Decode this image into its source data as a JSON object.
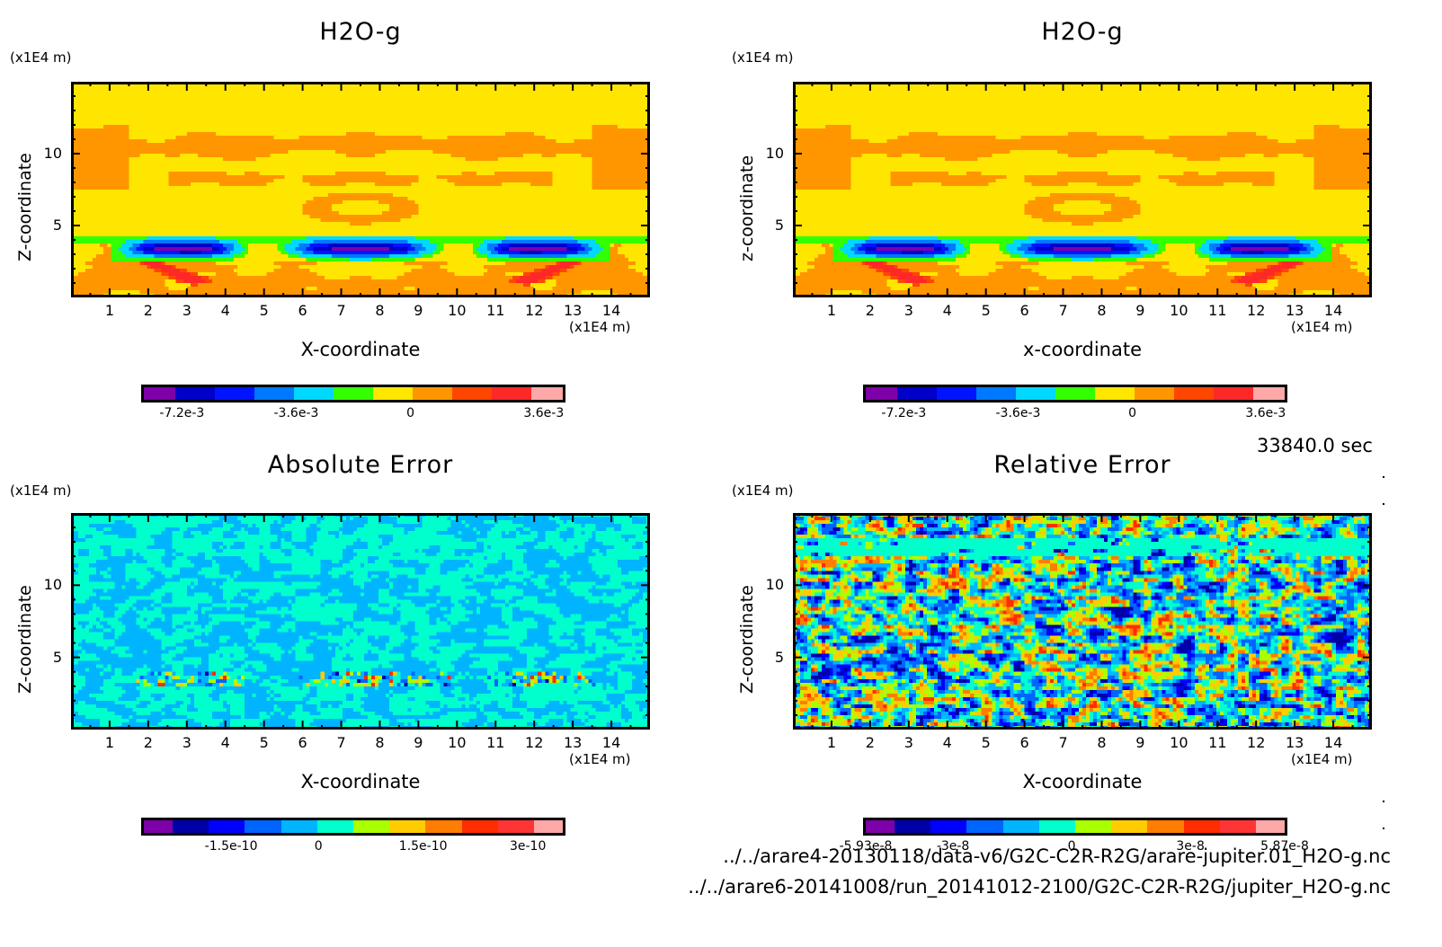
{
  "time_label": "33840.0 sec",
  "file_paths": [
    "../../arare4-20130118/data-v6/G2C-C2R-R2G/arare-jupiter.01_H2O-g.nc",
    "../../arare6-20141008/run_20141012-2100/G2C-C2R-R2G/jupiter_H2O-g.nc"
  ],
  "chart_data": [
    {
      "type": "heatmap",
      "id": "top-left",
      "title": "H2O-g",
      "xlabel": "X-coordinate",
      "ylabel": "Z-coordinate",
      "x_unit": "(x1E4 m)",
      "y_unit": "(x1E4 m)",
      "xlim": [
        0,
        15
      ],
      "ylim": [
        0,
        15
      ],
      "x_ticks": [
        "1",
        "2",
        "3",
        "4",
        "5",
        "6",
        "7",
        "8",
        "9",
        "10",
        "11",
        "12",
        "13",
        "14"
      ],
      "y_ticks": [
        "5",
        "10"
      ],
      "field": "h2o",
      "colorbar": {
        "levels": [
          "-8.1e-3",
          "-7.2e-3",
          "-5.4e-3",
          "-3.6e-3",
          "-2.7e-3",
          "-0.9e-3",
          "0",
          "0.9e-3",
          "2.7e-3",
          "3.6e-3",
          "4.5e-3"
        ],
        "colors": [
          "#7d00a8",
          "#0000c8",
          "#0014ff",
          "#0078ff",
          "#00d8ff",
          "#32ff00",
          "#ffe600",
          "#ff9600",
          "#ff4600",
          "#ff2828",
          "#ffa8a8"
        ],
        "tick_labels": [
          "-7.2e-3",
          "-3.6e-3",
          "0",
          "3.6e-3"
        ],
        "tick_positions": [
          1,
          4,
          7,
          10.5
        ]
      }
    },
    {
      "type": "heatmap",
      "id": "top-right",
      "title": "H2O-g",
      "xlabel": "x-coordinate",
      "ylabel": "z-coordinate",
      "x_unit": "(x1E4 m)",
      "y_unit": "(x1E4 m)",
      "xlim": [
        0,
        15
      ],
      "ylim": [
        0,
        15
      ],
      "x_ticks": [
        "1",
        "2",
        "3",
        "4",
        "5",
        "6",
        "7",
        "8",
        "9",
        "10",
        "11",
        "12",
        "13",
        "14"
      ],
      "y_ticks": [
        "5",
        "10"
      ],
      "field": "h2o",
      "colorbar": {
        "colors": [
          "#7d00a8",
          "#0000c8",
          "#0014ff",
          "#0078ff",
          "#00d8ff",
          "#32ff00",
          "#ffe600",
          "#ff9600",
          "#ff4600",
          "#ff2828",
          "#ffa8a8"
        ],
        "tick_labels": [
          "-7.2e-3",
          "-3.6e-3",
          "0",
          "3.6e-3"
        ],
        "tick_positions": [
          1,
          4,
          7,
          10.5
        ]
      }
    },
    {
      "type": "heatmap",
      "id": "bottom-left",
      "title": "Absolute Error",
      "xlabel": "X-coordinate",
      "ylabel": "Z-coordinate",
      "x_unit": "(x1E4 m)",
      "y_unit": "(x1E4 m)",
      "xlim": [
        0,
        15
      ],
      "ylim": [
        0,
        15
      ],
      "x_ticks": [
        "1",
        "2",
        "3",
        "4",
        "5",
        "6",
        "7",
        "8",
        "9",
        "10",
        "11",
        "12",
        "13",
        "14"
      ],
      "y_ticks": [
        "5",
        "10"
      ],
      "field": "abs",
      "colorbar": {
        "colors": [
          "#7d00a8",
          "#0000a8",
          "#0000ff",
          "#0064ff",
          "#00b4ff",
          "#00ffcc",
          "#aaff00",
          "#ffcc00",
          "#ff7d00",
          "#ff2d00",
          "#ff3535",
          "#ffa8a8"
        ],
        "tick_labels": [
          "-1.5e-10",
          "0",
          "1.5e-10",
          "3e-10"
        ],
        "tick_positions": [
          2.5,
          5,
          8,
          11
        ]
      }
    },
    {
      "type": "heatmap",
      "id": "bottom-right",
      "title": "Relative Error",
      "xlabel": "X-coordinate",
      "ylabel": "Z-coordinate",
      "x_unit": "(x1E4 m)",
      "y_unit": "(x1E4 m)",
      "xlim": [
        0,
        15
      ],
      "ylim": [
        0,
        15
      ],
      "x_ticks": [
        "1",
        "2",
        "3",
        "4",
        "5",
        "6",
        "7",
        "8",
        "9",
        "10",
        "11",
        "12",
        "13",
        "14"
      ],
      "y_ticks": [
        "5",
        "10"
      ],
      "field": "rel",
      "colorbar": {
        "colors": [
          "#7d00a8",
          "#0000a8",
          "#0000ff",
          "#0064ff",
          "#00b4ff",
          "#00ffcc",
          "#aaff00",
          "#ffcc00",
          "#ff7d00",
          "#ff2d00",
          "#ff3535",
          "#ffa8a8"
        ],
        "tick_labels": [
          "-5.93e-8",
          "-3e-8",
          "0",
          "3e-8",
          "5.87e-8"
        ],
        "tick_positions": [
          0,
          2.5,
          5.9,
          9.3,
          12
        ]
      }
    }
  ]
}
